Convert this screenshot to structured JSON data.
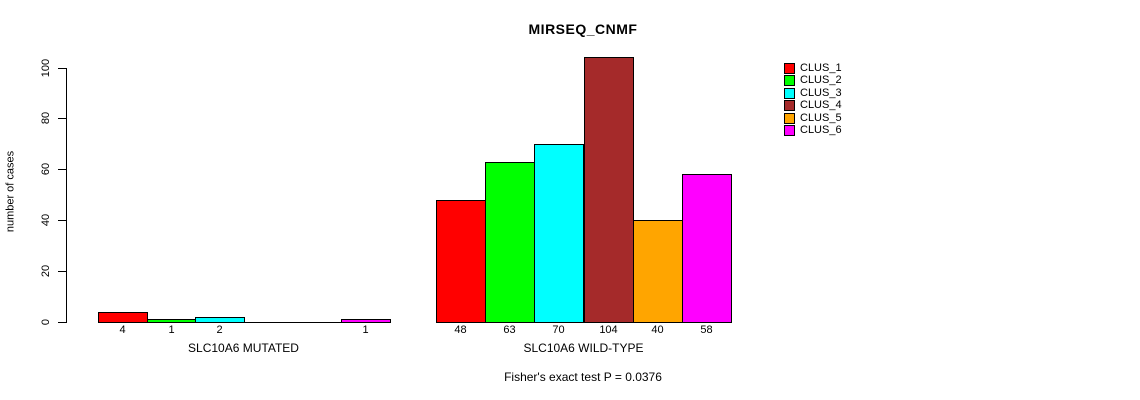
{
  "title": "MIRSEQ_CNMF",
  "ylabel": "number of cases",
  "annotation": "Fisher's exact test P = 0.0376",
  "legend": {
    "items": [
      {
        "label": "CLUS_1",
        "color": "#FF0000"
      },
      {
        "label": "CLUS_2",
        "color": "#00FF00"
      },
      {
        "label": "CLUS_3",
        "color": "#00FFFF"
      },
      {
        "label": "CLUS_4",
        "color": "#A52A2A"
      },
      {
        "label": "CLUS_5",
        "color": "#FFA500"
      },
      {
        "label": "CLUS_6",
        "color": "#FF00FF"
      }
    ]
  },
  "chart_data": {
    "type": "bar",
    "title": "MIRSEQ_CNMF",
    "xlabel": "",
    "ylabel": "number of cases",
    "ylim": [
      0,
      100
    ],
    "yticks": [
      0,
      20,
      40,
      60,
      80,
      100
    ],
    "grid": false,
    "legend_position": "right-outside",
    "series_names": [
      "CLUS_1",
      "CLUS_2",
      "CLUS_3",
      "CLUS_4",
      "CLUS_5",
      "CLUS_6"
    ],
    "series_colors": [
      "#FF0000",
      "#00FF00",
      "#00FFFF",
      "#A52A2A",
      "#FFA500",
      "#FF00FF"
    ],
    "groups": [
      {
        "label": "SLC10A6 MUTATED",
        "values": [
          4,
          1,
          2,
          0,
          0,
          1
        ]
      },
      {
        "label": "SLC10A6 WILD-TYPE",
        "values": [
          48,
          63,
          70,
          104,
          40,
          58
        ]
      }
    ],
    "bar_value_labels_visible": true,
    "annotation": "Fisher's exact test P = 0.0376"
  }
}
